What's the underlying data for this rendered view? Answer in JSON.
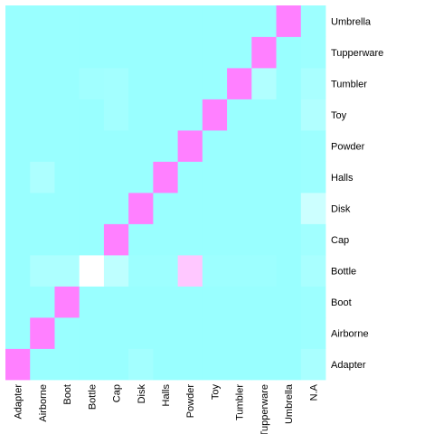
{
  "chart_data": {
    "type": "heatmap",
    "title": "",
    "xlabel": "",
    "ylabel": "",
    "x_categories": [
      "Adapter",
      "Airborne",
      "Boot",
      "Bottle",
      "Cap",
      "Disk",
      "Halls",
      "Powder",
      "Toy",
      "Tumbler",
      "Tupperware",
      "Umbrella",
      "N.A"
    ],
    "y_categories": [
      "Adapter",
      "Airborne",
      "Boot",
      "Bottle",
      "Cap",
      "Disk",
      "Halls",
      "Powder",
      "Toy",
      "Tumbler",
      "Tupperware",
      "Umbrella"
    ],
    "value_range": [
      0,
      1
    ],
    "colors": {
      "low": "#99ffff",
      "mid": "#ffffff",
      "high": "#ff80ff"
    },
    "values": [
      [
        1.0,
        0.0,
        0.0,
        0.0,
        0.0,
        0.05,
        0.0,
        0.0,
        0.0,
        0.0,
        0.0,
        0.0,
        0.08
      ],
      [
        0.0,
        1.0,
        0.0,
        0.0,
        0.0,
        0.0,
        0.0,
        0.0,
        0.0,
        0.0,
        0.0,
        0.0,
        0.02
      ],
      [
        0.0,
        0.0,
        1.0,
        0.0,
        0.0,
        0.0,
        0.0,
        0.0,
        0.0,
        0.0,
        0.0,
        0.0,
        0.02
      ],
      [
        0.0,
        0.1,
        0.1,
        0.5,
        0.18,
        0.02,
        0.02,
        0.72,
        0.02,
        0.02,
        0.02,
        0.0,
        0.08
      ],
      [
        0.0,
        0.0,
        0.0,
        0.0,
        1.0,
        0.0,
        0.0,
        0.0,
        0.0,
        0.0,
        0.0,
        0.0,
        0.04
      ],
      [
        0.0,
        0.0,
        0.0,
        0.0,
        0.0,
        1.0,
        0.0,
        0.0,
        0.0,
        0.0,
        0.0,
        0.0,
        0.25
      ],
      [
        0.0,
        0.1,
        0.0,
        0.0,
        0.0,
        0.0,
        1.0,
        0.0,
        0.0,
        0.0,
        0.0,
        0.0,
        0.02
      ],
      [
        0.0,
        0.0,
        0.0,
        0.0,
        0.0,
        0.0,
        0.0,
        1.0,
        0.0,
        0.0,
        0.0,
        0.0,
        0.02
      ],
      [
        0.0,
        0.0,
        0.0,
        0.0,
        0.05,
        0.0,
        0.0,
        0.0,
        1.0,
        0.0,
        0.0,
        0.0,
        0.12
      ],
      [
        0.0,
        0.0,
        0.0,
        0.04,
        0.05,
        0.0,
        0.0,
        0.0,
        0.0,
        1.0,
        0.12,
        0.0,
        0.08
      ],
      [
        0.0,
        0.0,
        0.0,
        0.0,
        0.0,
        0.0,
        0.0,
        0.0,
        0.0,
        0.0,
        1.0,
        0.0,
        0.02
      ],
      [
        0.0,
        0.0,
        0.0,
        0.0,
        0.0,
        0.0,
        0.0,
        0.0,
        0.0,
        0.0,
        0.0,
        1.0,
        0.02
      ]
    ],
    "legend": "none",
    "grid": false
  }
}
